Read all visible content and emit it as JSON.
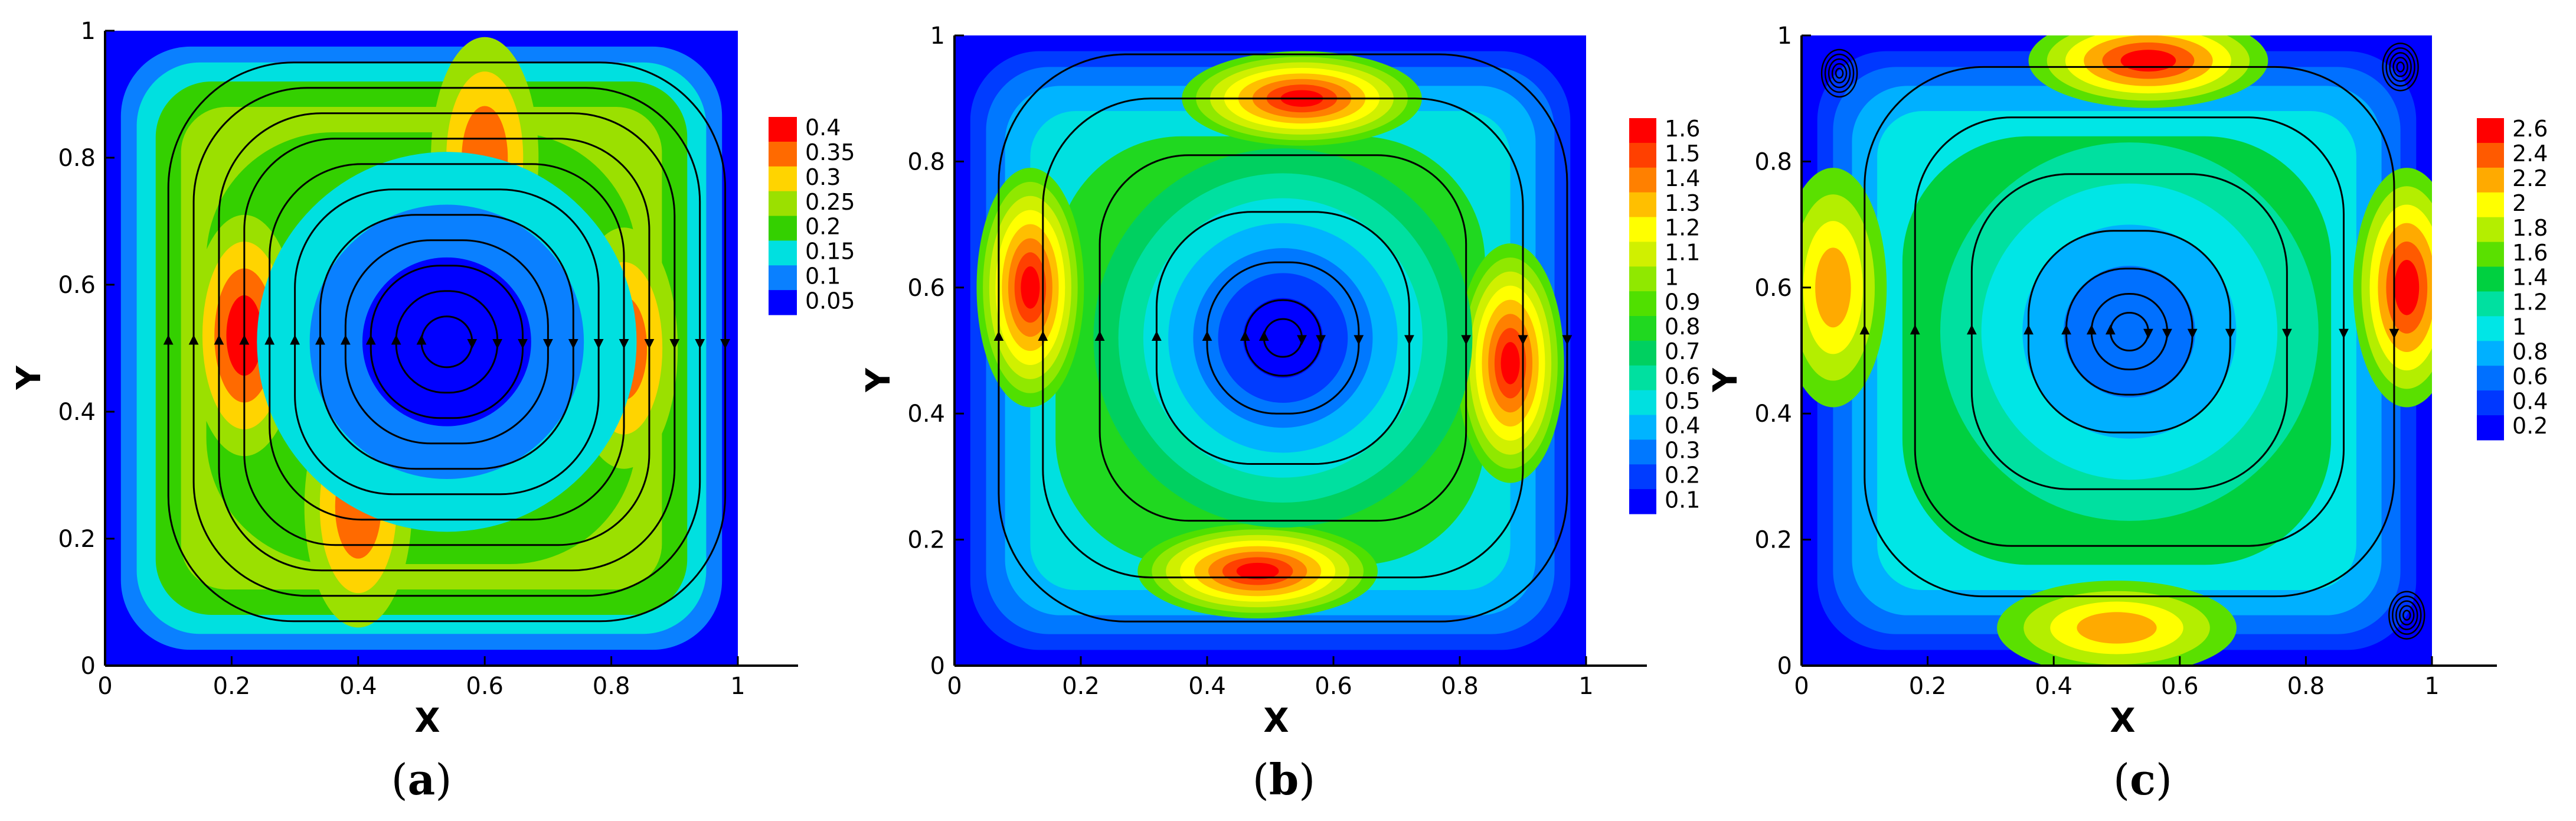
{
  "chart_data": [
    {
      "type": "heatmap",
      "panel": "a",
      "caption_open": "(",
      "caption_letter": "a",
      "caption_close": ")",
      "xlabel": "X",
      "ylabel": "Y",
      "xlim": [
        0,
        1
      ],
      "ylim": [
        0,
        1
      ],
      "xticks": [
        "0",
        "0.2",
        "0.4",
        "0.6",
        "0.8",
        "1"
      ],
      "yticks": [
        "0",
        "0.2",
        "0.4",
        "0.6",
        "0.8",
        "1"
      ],
      "colorbar_levels": [
        "0.4",
        "0.35",
        "0.3",
        "0.25",
        "0.2",
        "0.15",
        "0.1",
        "0.05"
      ],
      "colorbar_colors": [
        "#ff0000",
        "#ff6a00",
        "#ffd400",
        "#9be000",
        "#34d000",
        "#00e0e0",
        "#0a80ff",
        "#0000ff"
      ],
      "vortex_center": [
        0.54,
        0.51
      ],
      "features": [
        {
          "kind": "high",
          "x": 0.22,
          "y": 0.52,
          "level": 0.4
        },
        {
          "kind": "high",
          "x": 0.6,
          "y": 0.8,
          "level": 0.35
        },
        {
          "kind": "high",
          "x": 0.4,
          "y": 0.25,
          "level": 0.35
        },
        {
          "kind": "high",
          "x": 0.82,
          "y": 0.5,
          "level": 0.35
        },
        {
          "kind": "low",
          "x": 0.54,
          "y": 0.51,
          "level": 0.05
        }
      ],
      "streamline_radii": [
        0.04,
        0.08,
        0.12,
        0.16,
        0.2,
        0.24,
        0.28,
        0.32,
        0.36,
        0.4,
        0.44
      ]
    },
    {
      "type": "heatmap",
      "panel": "b",
      "caption_open": "(",
      "caption_letter": "b",
      "caption_close": ")",
      "xlabel": "X",
      "ylabel": "Y",
      "xlim": [
        0,
        1
      ],
      "ylim": [
        0,
        1
      ],
      "xticks": [
        "0",
        "0.2",
        "0.4",
        "0.6",
        "0.8",
        "1"
      ],
      "yticks": [
        "0",
        "0.2",
        "0.4",
        "0.6",
        "0.8",
        "1"
      ],
      "colorbar_levels": [
        "1.6",
        "1.5",
        "1.4",
        "1.3",
        "1.2",
        "1.1",
        "1",
        "0.9",
        "0.8",
        "0.7",
        "0.6",
        "0.5",
        "0.4",
        "0.3",
        "0.2",
        "0.1"
      ],
      "colorbar_colors": [
        "#ff0000",
        "#ff4000",
        "#ff8000",
        "#ffbf00",
        "#ffff00",
        "#d0f000",
        "#90e800",
        "#50e000",
        "#20d820",
        "#00d060",
        "#00e0a0",
        "#00e0e0",
        "#00b4ff",
        "#0078ff",
        "#003cff",
        "#0000ff"
      ],
      "vortex_center": [
        0.52,
        0.52
      ],
      "features": [
        {
          "kind": "high",
          "x": 0.55,
          "y": 0.9,
          "level": 1.6
        },
        {
          "kind": "high",
          "x": 0.12,
          "y": 0.6,
          "level": 1.6
        },
        {
          "kind": "high",
          "x": 0.88,
          "y": 0.48,
          "level": 1.6
        },
        {
          "kind": "high",
          "x": 0.48,
          "y": 0.15,
          "level": 1.6
        },
        {
          "kind": "low",
          "x": 0.52,
          "y": 0.52,
          "level": 0.1
        }
      ],
      "streamline_radii": [
        0.03,
        0.06,
        0.12,
        0.2,
        0.29,
        0.38,
        0.45
      ]
    },
    {
      "type": "heatmap",
      "panel": "c",
      "caption_open": "(",
      "caption_letter": "c",
      "caption_close": ")",
      "xlabel": "X",
      "ylabel": "Y",
      "xlim": [
        0,
        1
      ],
      "ylim": [
        0,
        1
      ],
      "xticks": [
        "0",
        "0.2",
        "0.4",
        "0.6",
        "0.8",
        "1"
      ],
      "yticks": [
        "0",
        "0.2",
        "0.4",
        "0.6",
        "0.8",
        "1"
      ],
      "colorbar_levels": [
        "2.6",
        "2.4",
        "2.2",
        "2",
        "1.8",
        "1.6",
        "1.4",
        "1.2",
        "1",
        "0.8",
        "0.6",
        "0.4",
        "0.2"
      ],
      "colorbar_colors": [
        "#ff0000",
        "#ff5a00",
        "#ffaa00",
        "#ffff00",
        "#b4ee00",
        "#5ae000",
        "#00d040",
        "#00e0a0",
        "#00e6e6",
        "#00b0ff",
        "#0070ff",
        "#0038ff",
        "#0000ff"
      ],
      "vortex_center": [
        0.52,
        0.53
      ],
      "features": [
        {
          "kind": "high",
          "x": 0.55,
          "y": 0.96,
          "level": 2.6
        },
        {
          "kind": "high",
          "x": 0.05,
          "y": 0.6,
          "level": 2.2
        },
        {
          "kind": "high",
          "x": 0.96,
          "y": 0.6,
          "level": 2.6
        },
        {
          "kind": "high",
          "x": 0.5,
          "y": 0.06,
          "level": 2.2
        },
        {
          "kind": "low",
          "x": 0.52,
          "y": 0.53,
          "level": 0.6
        }
      ],
      "corner_vortices": [
        [
          0.06,
          0.94
        ],
        [
          0.95,
          0.95
        ],
        [
          0.96,
          0.08
        ]
      ],
      "streamline_radii": [
        0.03,
        0.06,
        0.1,
        0.16,
        0.25,
        0.34,
        0.42
      ]
    }
  ]
}
